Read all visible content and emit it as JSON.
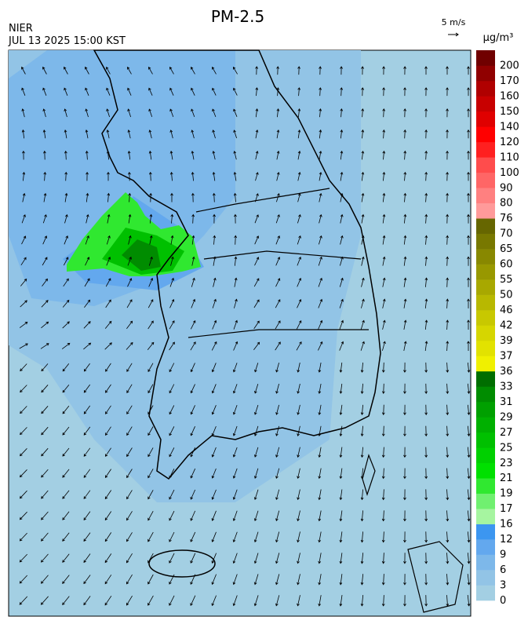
{
  "header": {
    "title": "PM-2.5",
    "source": "NIER",
    "datetime": "JUL 13 2025 15:00 KST",
    "wind_scale": "5 m/s"
  },
  "colorbar": {
    "unit": "µg/m³",
    "levels": [
      {
        "label": "0",
        "color": "#a3cfe3"
      },
      {
        "label": "3",
        "color": "#92c4e6"
      },
      {
        "label": "6",
        "color": "#7db8ea"
      },
      {
        "label": "9",
        "color": "#63a8ee"
      },
      {
        "label": "12",
        "color": "#3c96f0"
      },
      {
        "label": "16",
        "color": "#a6f5a0"
      },
      {
        "label": "17",
        "color": "#70f070"
      },
      {
        "label": "19",
        "color": "#30e830"
      },
      {
        "label": "21",
        "color": "#00e000"
      },
      {
        "label": "23",
        "color": "#00d000"
      },
      {
        "label": "25",
        "color": "#00c000"
      },
      {
        "label": "27",
        "color": "#00b000"
      },
      {
        "label": "29",
        "color": "#00a000"
      },
      {
        "label": "31",
        "color": "#008c00"
      },
      {
        "label": "33",
        "color": "#006e00"
      },
      {
        "label": "36",
        "color": "#f0f000"
      },
      {
        "label": "37",
        "color": "#e2e200"
      },
      {
        "label": "39",
        "color": "#d6d600"
      },
      {
        "label": "42",
        "color": "#c8c800"
      },
      {
        "label": "46",
        "color": "#b8b800"
      },
      {
        "label": "50",
        "color": "#a8a800"
      },
      {
        "label": "55",
        "color": "#989800"
      },
      {
        "label": "60",
        "color": "#888800"
      },
      {
        "label": "65",
        "color": "#787800"
      },
      {
        "label": "70",
        "color": "#666600"
      },
      {
        "label": "76",
        "color": "#ff9a9a"
      },
      {
        "label": "80",
        "color": "#ff8080"
      },
      {
        "label": "90",
        "color": "#ff6666"
      },
      {
        "label": "100",
        "color": "#ff4c4c"
      },
      {
        "label": "110",
        "color": "#ff2020"
      },
      {
        "label": "120",
        "color": "#ff0000"
      },
      {
        "label": "140",
        "color": "#e00000"
      },
      {
        "label": "150",
        "color": "#c80000"
      },
      {
        "label": "160",
        "color": "#b00000"
      },
      {
        "label": "170",
        "color": "#900000"
      },
      {
        "label": "200",
        "color": "#700000"
      }
    ]
  }
}
